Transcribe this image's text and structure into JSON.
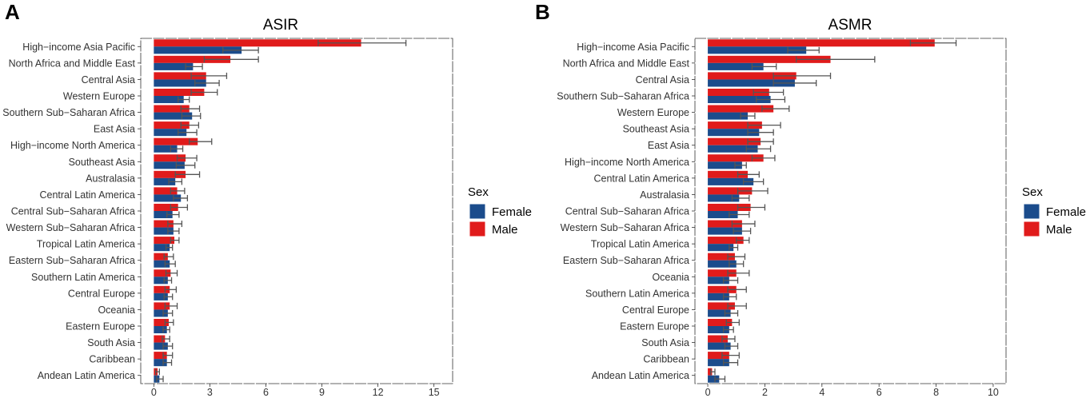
{
  "panel_letters": [
    "A",
    "B"
  ],
  "legend": {
    "title": "Sex",
    "items": [
      {
        "label": "Female",
        "color": "#1B4C8C"
      },
      {
        "label": "Male",
        "color": "#E01B1B"
      }
    ]
  },
  "colors": {
    "female": "#1B4C8C",
    "male": "#E01B1B",
    "panel_bg": "#FFFFFF",
    "errorbar": "#555555"
  },
  "chart_data": [
    {
      "type": "bar",
      "title": "ASIR",
      "panel_letter": "A",
      "orientation": "horizontal",
      "categories": [
        "High−income Asia Pacific",
        "North Africa and Middle East",
        "Central Asia",
        "Western Europe",
        "Southern Sub−Saharan Africa",
        "East Asia",
        "High−income North America",
        "Southeast Asia",
        "Australasia",
        "Central Latin America",
        "Central Sub−Saharan Africa",
        "Western Sub−Saharan Africa",
        "Tropical Latin America",
        "Eastern Sub−Saharan Africa",
        "Southern Latin America",
        "Central Europe",
        "Oceania",
        "Eastern Europe",
        "South Asia",
        "Caribbean",
        "Andean Latin America"
      ],
      "series": [
        {
          "name": "Male",
          "values": [
            11.1,
            4.1,
            2.8,
            2.7,
            1.9,
            1.9,
            2.35,
            1.7,
            1.7,
            1.25,
            1.3,
            1.05,
            1.1,
            0.75,
            0.9,
            0.85,
            0.85,
            0.8,
            0.6,
            0.7,
            0.2
          ],
          "error_low": [
            8.8,
            2.7,
            2.0,
            2.0,
            1.45,
            1.45,
            1.9,
            1.25,
            1.15,
            0.9,
            0.9,
            0.75,
            0.9,
            0.55,
            0.65,
            0.6,
            0.6,
            0.6,
            0.45,
            0.5,
            0.1
          ],
          "error_high": [
            13.5,
            5.6,
            3.9,
            3.4,
            2.45,
            2.4,
            3.1,
            2.3,
            2.45,
            1.65,
            1.8,
            1.5,
            1.35,
            1.05,
            1.25,
            1.2,
            1.25,
            1.05,
            0.85,
            1.0,
            0.3
          ]
        },
        {
          "name": "Female",
          "values": [
            4.7,
            2.1,
            2.8,
            1.6,
            2.05,
            1.75,
            1.25,
            1.65,
            1.15,
            1.45,
            1.0,
            1.05,
            0.85,
            0.85,
            0.75,
            0.75,
            0.75,
            0.7,
            0.75,
            0.7,
            0.3
          ],
          "error_low": [
            3.7,
            1.7,
            2.2,
            1.3,
            1.5,
            1.3,
            0.9,
            1.2,
            0.8,
            1.05,
            0.7,
            0.75,
            0.65,
            0.6,
            0.55,
            0.55,
            0.5,
            0.5,
            0.5,
            0.5,
            0.15
          ],
          "error_high": [
            5.6,
            2.6,
            3.5,
            1.9,
            2.5,
            2.3,
            1.55,
            2.2,
            1.5,
            1.8,
            1.35,
            1.35,
            1.0,
            1.15,
            0.95,
            1.0,
            1.0,
            0.85,
            1.0,
            0.95,
            0.5
          ]
        }
      ],
      "xlim": [
        -0.7,
        16.0
      ],
      "xticks": [
        0,
        3,
        6,
        9,
        12,
        15
      ],
      "xtick_labels": [
        "0",
        "3",
        "6",
        "9",
        "12",
        "15"
      ],
      "xlabel": "",
      "ylabel": ""
    },
    {
      "type": "bar",
      "title": "ASMR",
      "panel_letter": "B",
      "orientation": "horizontal",
      "categories": [
        "High−income Asia Pacific",
        "North Africa and Middle East",
        "Central Asia",
        "Southern Sub−Saharan Africa",
        "Western Europe",
        "Southeast Asia",
        "East Asia",
        "High−income North America",
        "Central Latin America",
        "Australasia",
        "Central Sub−Saharan Africa",
        "Western Sub−Saharan Africa",
        "Tropical Latin America",
        "Eastern Sub−Saharan Africa",
        "Oceania",
        "Southern Latin America",
        "Central Europe",
        "Eastern Europe",
        "South Asia",
        "Caribbean",
        "Andean Latin America"
      ],
      "series": [
        {
          "name": "Male",
          "values": [
            7.95,
            4.3,
            3.1,
            2.15,
            2.3,
            1.9,
            1.85,
            1.95,
            1.4,
            1.55,
            1.5,
            1.2,
            1.25,
            0.95,
            1.0,
            1.0,
            0.95,
            0.85,
            0.7,
            0.75,
            0.15
          ],
          "error_low": [
            7.1,
            3.1,
            2.3,
            1.6,
            1.9,
            1.4,
            1.4,
            1.55,
            1.05,
            1.05,
            1.05,
            0.85,
            1.0,
            0.7,
            0.7,
            0.7,
            0.7,
            0.65,
            0.5,
            0.5,
            0.1
          ],
          "error_high": [
            8.7,
            5.85,
            4.3,
            2.65,
            2.85,
            2.55,
            2.3,
            2.35,
            1.8,
            2.1,
            2.0,
            1.65,
            1.45,
            1.3,
            1.45,
            1.35,
            1.35,
            1.1,
            0.95,
            1.1,
            0.25
          ]
        },
        {
          "name": "Female",
          "values": [
            3.45,
            1.95,
            3.05,
            2.2,
            1.4,
            1.8,
            1.75,
            1.2,
            1.6,
            1.1,
            1.05,
            1.2,
            0.9,
            1.0,
            0.75,
            0.75,
            0.8,
            0.75,
            0.8,
            0.75,
            0.4
          ],
          "error_low": [
            2.8,
            1.55,
            2.3,
            1.7,
            1.15,
            1.4,
            1.35,
            0.95,
            1.25,
            0.85,
            0.75,
            0.9,
            0.75,
            0.75,
            0.55,
            0.55,
            0.6,
            0.55,
            0.6,
            0.55,
            0.25
          ],
          "error_high": [
            3.9,
            2.4,
            3.8,
            2.7,
            1.65,
            2.3,
            2.2,
            1.35,
            1.95,
            1.45,
            1.45,
            1.5,
            1.05,
            1.25,
            1.05,
            1.0,
            1.05,
            0.9,
            1.05,
            1.05,
            0.6
          ]
        }
      ],
      "xlim": [
        -0.45,
        10.45
      ],
      "xticks": [
        0,
        2,
        4,
        6,
        8,
        10
      ],
      "xtick_labels": [
        "0",
        "2",
        "4",
        "6",
        "8",
        "10"
      ],
      "xlabel": "",
      "ylabel": ""
    }
  ]
}
